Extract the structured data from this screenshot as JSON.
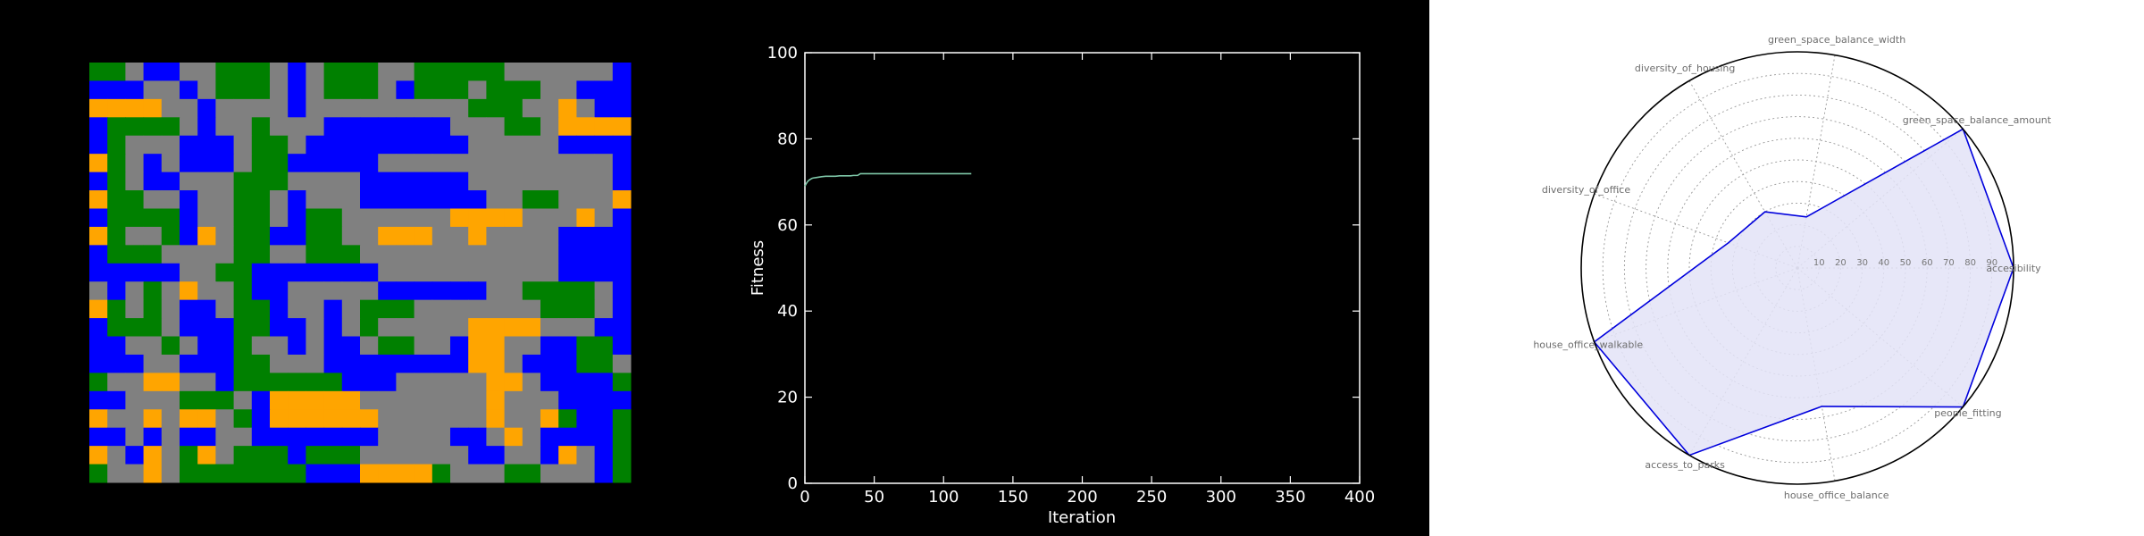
{
  "colors": {
    "background_dark": "#000000",
    "background_light": "#ffffff",
    "road": "#808080",
    "green": "#008000",
    "blue": "#0000ff",
    "orange": "#ffa500",
    "fitness_line": "#7fc8a9",
    "radar_line": "#0000dd",
    "radar_fill": "#e3e3f7"
  },
  "chart_data": [
    {
      "type": "heatmap",
      "title": "",
      "categories": [
        "road",
        "green",
        "blue",
        "orange"
      ],
      "grid_cols": 30,
      "grid_rows": 23,
      "rows": [
        "GGRBBRRGGGRBRGGGRRGGGGGRRRRRRB",
        "BBBRRBRGGGRBRGGGRBGGGRGGGRRBBB",
        "OOOORRBRRRRBRRRRRRRRRGGGRRORBB",
        "BGGGGRBRRGRRRBBBBBBBRRRGGROOOO",
        "BGRRRBBBRGGRBBBBBBBBBRRRRRBBBB",
        "OGRBRBBBRGGBBBBBRRRRRRRRRRRRRB",
        "BGRBBRRRGGGRRRRBBBBBBRRRRRRRRB",
        "OGGRRBRRGGRBRRRBBBBBBBRRGGRRRO",
        "BGGGGBRRGGRBGGRRRRRROOOORRRORB",
        "OGRRGBORGGBBGGRROOORRORRRRBBBB",
        "BGGGRRRRGGRRGGGRRRRRRRRRRRBBBB",
        "BBBBBRRGGBBBBBBBRRRRRRRRRRBBBB",
        "RBRGRORRGBBRRRRRBBBBBBRRGGGGRB",
        "OGRGRBBRGGBRRBRGGGRRRRRRRGGGRB",
        "BGGGRBBBGGBBRBRGRRRRROOOORRRBB",
        "BBRRGRBBGRRBRBBRGGRRBOORRBBGGB",
        "BBBRRBBBGGRRRBBBBBBBBOORBBBGGR",
        "GRROORRBGGGGGGBBBRRRRROORBBBBG",
        "BBRRRGGGRBOOOOORRRRRRRORRRBBBB",
        "ORROROORGBOOOOOORRRRRRORROGBBG",
        "BBRBRBBRRBBBBBBBRRRRBBRORBBBBG",
        "ORBORGORGGGBGGGRRRRRRBBRRBORBG",
        "GRRORGGGGGGGBBBOOOOGRRRGGRRRBG"
      ]
    },
    {
      "type": "line",
      "title": "",
      "xlabel": "Iteration",
      "ylabel": "Fitness",
      "xlim": [
        0,
        400
      ],
      "ylim": [
        0,
        100
      ],
      "xticks": [
        "0",
        "50",
        "100",
        "150",
        "200",
        "250",
        "300",
        "350",
        "400"
      ],
      "yticks": [
        "0",
        "20",
        "40",
        "60",
        "80",
        "100"
      ],
      "grid": false,
      "series": [
        {
          "x": [
            0,
            1,
            2,
            3,
            4,
            5,
            6,
            8,
            10,
            12,
            15,
            18,
            20,
            22,
            25,
            28,
            30,
            33,
            35,
            38,
            40,
            45,
            50,
            55,
            60,
            70,
            80,
            90,
            100,
            110,
            120
          ],
          "y": [
            69.0,
            69.6,
            70.1,
            70.4,
            70.6,
            70.8,
            70.9,
            71.0,
            71.1,
            71.2,
            71.3,
            71.3,
            71.3,
            71.3,
            71.4,
            71.4,
            71.4,
            71.4,
            71.5,
            71.5,
            71.9,
            71.9,
            71.9,
            71.9,
            71.9,
            71.9,
            71.9,
            71.9,
            71.9,
            71.9,
            71.9
          ]
        }
      ]
    },
    {
      "type": "radar",
      "title": "",
      "categories": [
        "accesibility",
        "green_space_balance_amount",
        "green_space_balance_width",
        "diversity_of_housing",
        "diversity_of_office",
        "house_office_walkable",
        "access_to_parks",
        "house_office_balance",
        "people_fitting"
      ],
      "values": [
        100,
        100,
        24,
        30,
        34,
        100,
        100,
        65,
        100
      ],
      "r_range": [
        0,
        100
      ],
      "ring_labels": [
        "10",
        "20",
        "30",
        "40",
        "50",
        "60",
        "70",
        "80",
        "90"
      ],
      "grid": true
    }
  ]
}
